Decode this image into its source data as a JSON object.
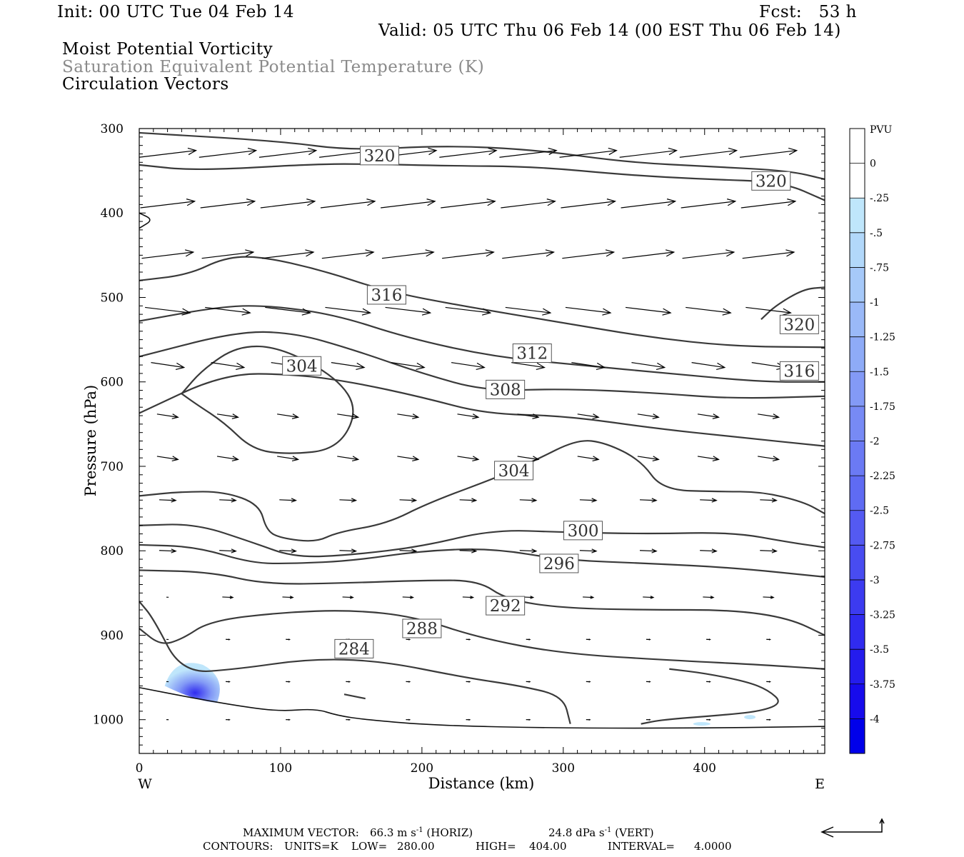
{
  "header": {
    "init": "Init: 00 UTC Tue 04 Feb 14",
    "fcst": "Fcst:   53 h",
    "valid": "Valid: 05 UTC Thu 06 Feb 14 (00 EST Thu 06 Feb 14)",
    "field1": "Moist Potential Vorticity",
    "field2": "Saturation Equivalent Potential Temperature (K)",
    "field3": "Circulation Vectors"
  },
  "footer": {
    "max_vector_label": "MAXIMUM VECTOR:",
    "horiz": "66.3 m s",
    "horiz_sup": "-1",
    "horiz_tag": "(HORIZ)",
    "vert": "24.8 dPa s",
    "vert_sup": "-1",
    "vert_tag": "(VERT)",
    "contours_label": "CONTOURS:",
    "units": "UNITS=K",
    "low_label": "LOW=",
    "low": "280.00",
    "high_label": "HIGH=",
    "high": "404.00",
    "interval_label": "INTERVAL=",
    "interval": "4.0000"
  },
  "chart_data": {
    "type": "cross-section",
    "title": "Moist Potential Vorticity / Saturation Equivalent Potential Temperature (K) / Circulation Vectors",
    "xlabel": "Distance (km)",
    "ylabel": "Pressure (hPa)",
    "xlim": [
      0,
      485
    ],
    "ylim": [
      1040,
      300
    ],
    "x_ticks": [
      0,
      100,
      200,
      300,
      400
    ],
    "y_ticks": [
      300,
      400,
      500,
      600,
      700,
      800,
      900,
      1000
    ],
    "x_end_labels": {
      "left": "W",
      "right": "E"
    },
    "colorbar": {
      "unit": "PVU",
      "labels": [
        "0",
        "-.25",
        "-.5",
        "-.75",
        "-1",
        "-1.25",
        "-1.5",
        "-1.75",
        "-2",
        "-2.25",
        "-2.5",
        "-2.75",
        "-3",
        "-3.25",
        "-3.5",
        "-3.75",
        "-4"
      ],
      "colors": [
        "#ffffff",
        "#ffffff",
        "#bfe6fb",
        "#b2d8fa",
        "#a6c9f9",
        "#9ab9f8",
        "#8eabf7",
        "#839af6",
        "#778af5",
        "#6b7af4",
        "#5f6bf3",
        "#545af2",
        "#484cf1",
        "#3c3bf0",
        "#302bef",
        "#241ced",
        "#170bec",
        "#0000ea"
      ]
    },
    "contour_labels": [
      {
        "value": "320",
        "x": 170,
        "p": 332
      },
      {
        "value": "320",
        "x": 447,
        "p": 362
      },
      {
        "value": "316",
        "x": 175,
        "p": 497
      },
      {
        "value": "320",
        "x": 467,
        "p": 532
      },
      {
        "value": "312",
        "x": 278,
        "p": 566
      },
      {
        "value": "316",
        "x": 467,
        "p": 587
      },
      {
        "value": "304",
        "x": 115,
        "p": 581
      },
      {
        "value": "308",
        "x": 259,
        "p": 609
      },
      {
        "value": "304",
        "x": 265,
        "p": 705
      },
      {
        "value": "300",
        "x": 314,
        "p": 776
      },
      {
        "value": "296",
        "x": 297,
        "p": 815
      },
      {
        "value": "292",
        "x": 259,
        "p": 865
      },
      {
        "value": "288",
        "x": 200,
        "p": 892
      },
      {
        "value": "284",
        "x": 152,
        "p": 916
      }
    ],
    "contours": [
      {
        "level": 320,
        "points": [
          [
            0,
            305
          ],
          [
            100,
            315
          ],
          [
            150,
            326
          ],
          [
            215,
            320
          ],
          [
            280,
            325
          ],
          [
            345,
            340
          ],
          [
            405,
            345
          ],
          [
            460,
            350
          ],
          [
            485,
            360
          ]
        ]
      },
      {
        "level": 320,
        "points": [
          [
            0,
            343
          ],
          [
            40,
            350
          ],
          [
            125,
            342
          ],
          [
            165,
            342
          ],
          [
            215,
            344
          ],
          [
            280,
            345
          ],
          [
            345,
            355
          ],
          [
            400,
            360
          ],
          [
            455,
            363
          ],
          [
            485,
            385
          ]
        ]
      },
      {
        "level": 316,
        "points": [
          [
            0,
            480
          ],
          [
            35,
            473
          ],
          [
            60,
            453
          ],
          [
            85,
            451
          ],
          [
            130,
            468
          ],
          [
            175,
            493
          ],
          [
            235,
            512
          ],
          [
            300,
            530
          ],
          [
            360,
            547
          ],
          [
            420,
            558
          ],
          [
            485,
            559
          ]
        ]
      },
      {
        "level": 312,
        "points": [
          [
            0,
            528
          ],
          [
            60,
            510
          ],
          [
            95,
            510
          ],
          [
            140,
            521
          ],
          [
            190,
            548
          ],
          [
            250,
            570
          ],
          [
            310,
            580
          ],
          [
            375,
            590
          ],
          [
            440,
            600
          ],
          [
            485,
            600
          ]
        ]
      },
      {
        "level": 308,
        "points": [
          [
            0,
            570
          ],
          [
            70,
            540
          ],
          [
            110,
            542
          ],
          [
            150,
            561
          ],
          [
            200,
            590
          ],
          [
            245,
            611
          ],
          [
            300,
            608
          ],
          [
            365,
            613
          ],
          [
            420,
            620
          ],
          [
            485,
            617
          ]
        ]
      },
      {
        "level": 304,
        "points": [
          [
            0,
            637
          ],
          [
            60,
            590
          ],
          [
            110,
            591
          ],
          [
            150,
            600
          ],
          [
            200,
            618
          ],
          [
            245,
            638
          ],
          [
            300,
            640
          ],
          [
            365,
            655
          ],
          [
            420,
            665
          ],
          [
            485,
            676
          ]
        ]
      },
      {
        "level": 304,
        "points": [
          [
            30,
            614
          ],
          [
            45,
            585
          ],
          [
            70,
            557
          ],
          [
            100,
            559
          ],
          [
            140,
            595
          ],
          [
            155,
            634
          ],
          [
            140,
            680
          ],
          [
            105,
            686
          ],
          [
            80,
            680
          ],
          [
            60,
            648
          ],
          [
            40,
            626
          ],
          [
            30,
            614
          ]
        ]
      },
      {
        "level": 320,
        "points": [
          [
            440,
            526
          ],
          [
            450,
            510
          ],
          [
            470,
            490
          ],
          [
            485,
            488
          ]
        ]
      },
      {
        "level": 304,
        "points": [
          [
            0,
            735
          ],
          [
            30,
            730
          ],
          [
            60,
            730
          ],
          [
            85,
            745
          ],
          [
            90,
            776
          ],
          [
            100,
            785
          ],
          [
            125,
            790
          ],
          [
            140,
            778
          ],
          [
            175,
            768
          ],
          [
            205,
            743
          ],
          [
            255,
            712
          ],
          [
            280,
            693
          ],
          [
            310,
            668
          ],
          [
            330,
            672
          ],
          [
            355,
            693
          ],
          [
            370,
            728
          ],
          [
            410,
            730
          ],
          [
            440,
            730
          ],
          [
            470,
            742
          ],
          [
            485,
            756
          ]
        ]
      },
      {
        "level": 300,
        "points": [
          [
            0,
            770
          ],
          [
            40,
            768
          ],
          [
            80,
            790
          ],
          [
            110,
            808
          ],
          [
            150,
            805
          ],
          [
            200,
            795
          ],
          [
            250,
            775
          ],
          [
            300,
            778
          ],
          [
            360,
            780
          ],
          [
            420,
            778
          ],
          [
            460,
            790
          ],
          [
            485,
            796
          ]
        ]
      },
      {
        "level": 296,
        "points": [
          [
            0,
            793
          ],
          [
            40,
            795
          ],
          [
            80,
            815
          ],
          [
            110,
            815
          ],
          [
            150,
            812
          ],
          [
            200,
            800
          ],
          [
            250,
            797
          ],
          [
            300,
            811
          ],
          [
            360,
            815
          ],
          [
            420,
            820
          ],
          [
            485,
            831
          ]
        ]
      },
      {
        "level": 292,
        "points": [
          [
            0,
            823
          ],
          [
            50,
            825
          ],
          [
            90,
            840
          ],
          [
            150,
            838
          ],
          [
            200,
            835
          ],
          [
            240,
            835
          ],
          [
            260,
            858
          ],
          [
            300,
            868
          ],
          [
            360,
            870
          ],
          [
            420,
            870
          ],
          [
            460,
            880
          ],
          [
            485,
            900
          ]
        ]
      },
      {
        "level": 288,
        "points": [
          [
            0,
            892
          ],
          [
            15,
            912
          ],
          [
            30,
            905
          ],
          [
            50,
            883
          ],
          [
            100,
            873
          ],
          [
            150,
            870
          ],
          [
            195,
            878
          ],
          [
            240,
            903
          ],
          [
            300,
            922
          ],
          [
            380,
            930
          ],
          [
            440,
            935
          ],
          [
            485,
            940
          ]
        ]
      },
      {
        "level": 284,
        "points": [
          [
            0,
            860
          ],
          [
            10,
            880
          ],
          [
            30,
            945
          ],
          [
            70,
            940
          ],
          [
            120,
            928
          ],
          [
            170,
            930
          ],
          [
            230,
            950
          ],
          [
            270,
            960
          ],
          [
            300,
            972
          ],
          [
            305,
            1005
          ]
        ]
      },
      {
        "level": 284,
        "points": [
          [
            355,
            1005
          ],
          [
            370,
            1000
          ],
          [
            410,
            995
          ],
          [
            440,
            990
          ],
          [
            455,
            980
          ],
          [
            445,
            965
          ],
          [
            430,
            955
          ],
          [
            400,
            945
          ],
          [
            375,
            940
          ]
        ]
      },
      {
        "level": 280,
        "points": [
          [
            0,
            962
          ],
          [
            40,
            975
          ],
          [
            75,
            985
          ],
          [
            100,
            990
          ],
          [
            125,
            987
          ],
          [
            140,
            995
          ],
          [
            160,
            1000
          ],
          [
            210,
            1007
          ],
          [
            300,
            1010
          ],
          [
            400,
            1010
          ],
          [
            485,
            1008
          ]
        ]
      },
      {
        "level": 284,
        "points": [
          [
            145,
            970
          ],
          [
            160,
            975
          ]
        ]
      },
      {
        "level": 280,
        "points": [
          [
            0,
            400
          ],
          [
            10,
            408
          ],
          [
            0,
            418
          ]
        ]
      }
    ],
    "vectors_note": "circulation vectors: strong westerlies aloft (300-550 hPa), weak easterly-directed flow near surface"
  }
}
